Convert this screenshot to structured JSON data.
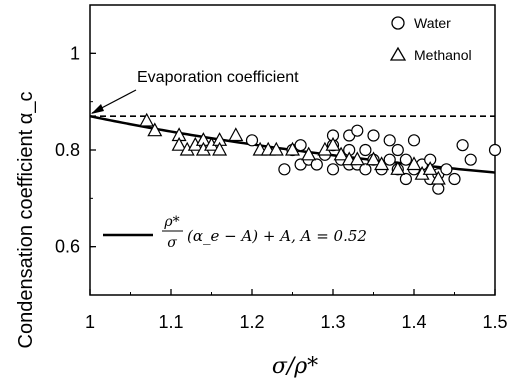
{
  "chart_data": {
    "type": "scatter",
    "xlabel": "σ/ρ*",
    "ylabel": "Condensation coefficient α_c",
    "xlim": [
      1.0,
      1.5
    ],
    "ylim": [
      0.5,
      1.1
    ],
    "x_ticks": [
      "1",
      "1.1",
      "1.2",
      "1.3",
      "1.4",
      "1.5"
    ],
    "y_ticks": [
      "0.6",
      "0.8",
      "1"
    ],
    "grid": false,
    "legend_position": "top-right",
    "series": [
      {
        "name": "Water",
        "marker": "circle",
        "points": [
          [
            1.2,
            0.82
          ],
          [
            1.24,
            0.76
          ],
          [
            1.25,
            0.8
          ],
          [
            1.26,
            0.77
          ],
          [
            1.26,
            0.81
          ],
          [
            1.27,
            0.78
          ],
          [
            1.28,
            0.77
          ],
          [
            1.29,
            0.79
          ],
          [
            1.3,
            0.76
          ],
          [
            1.3,
            0.81
          ],
          [
            1.3,
            0.83
          ],
          [
            1.31,
            0.78
          ],
          [
            1.32,
            0.77
          ],
          [
            1.32,
            0.8
          ],
          [
            1.32,
            0.83
          ],
          [
            1.33,
            0.84
          ],
          [
            1.33,
            0.77
          ],
          [
            1.34,
            0.76
          ],
          [
            1.34,
            0.8
          ],
          [
            1.35,
            0.78
          ],
          [
            1.35,
            0.83
          ],
          [
            1.36,
            0.76
          ],
          [
            1.37,
            0.82
          ],
          [
            1.37,
            0.78
          ],
          [
            1.38,
            0.76
          ],
          [
            1.38,
            0.8
          ],
          [
            1.39,
            0.74
          ],
          [
            1.39,
            0.78
          ],
          [
            1.4,
            0.82
          ],
          [
            1.4,
            0.76
          ],
          [
            1.41,
            0.77
          ],
          [
            1.42,
            0.74
          ],
          [
            1.42,
            0.78
          ],
          [
            1.43,
            0.72
          ],
          [
            1.43,
            0.75
          ],
          [
            1.44,
            0.76
          ],
          [
            1.45,
            0.74
          ],
          [
            1.46,
            0.81
          ],
          [
            1.47,
            0.78
          ],
          [
            1.5,
            0.8
          ]
        ]
      },
      {
        "name": "Methanol",
        "marker": "triangle",
        "points": [
          [
            1.07,
            0.86
          ],
          [
            1.08,
            0.84
          ],
          [
            1.11,
            0.83
          ],
          [
            1.11,
            0.81
          ],
          [
            1.12,
            0.8
          ],
          [
            1.13,
            0.81
          ],
          [
            1.14,
            0.82
          ],
          [
            1.14,
            0.8
          ],
          [
            1.15,
            0.81
          ],
          [
            1.16,
            0.82
          ],
          [
            1.16,
            0.8
          ],
          [
            1.18,
            0.83
          ],
          [
            1.21,
            0.8
          ],
          [
            1.22,
            0.8
          ],
          [
            1.23,
            0.8
          ],
          [
            1.25,
            0.8
          ],
          [
            1.27,
            0.79
          ],
          [
            1.29,
            0.8
          ],
          [
            1.3,
            0.81
          ],
          [
            1.31,
            0.79
          ],
          [
            1.32,
            0.78
          ],
          [
            1.33,
            0.78
          ],
          [
            1.35,
            0.78
          ],
          [
            1.36,
            0.77
          ],
          [
            1.38,
            0.76
          ],
          [
            1.4,
            0.77
          ],
          [
            1.41,
            0.75
          ],
          [
            1.42,
            0.76
          ],
          [
            1.43,
            0.74
          ]
        ]
      }
    ],
    "lines": [
      {
        "name": "Evaporation coefficient",
        "style": "dashed",
        "y": 0.87
      }
    ],
    "model_curve": {
      "formula_lhs_num": "ρ*",
      "formula_lhs_den": "σ",
      "formula_rhs": "(α_e − A) + A, A = 0.52",
      "alpha_e": 0.87,
      "A": 0.52
    },
    "annotations": [
      {
        "text": "Evaporation coefficient",
        "arrow_to": [
          1.0,
          0.87
        ]
      }
    ]
  }
}
